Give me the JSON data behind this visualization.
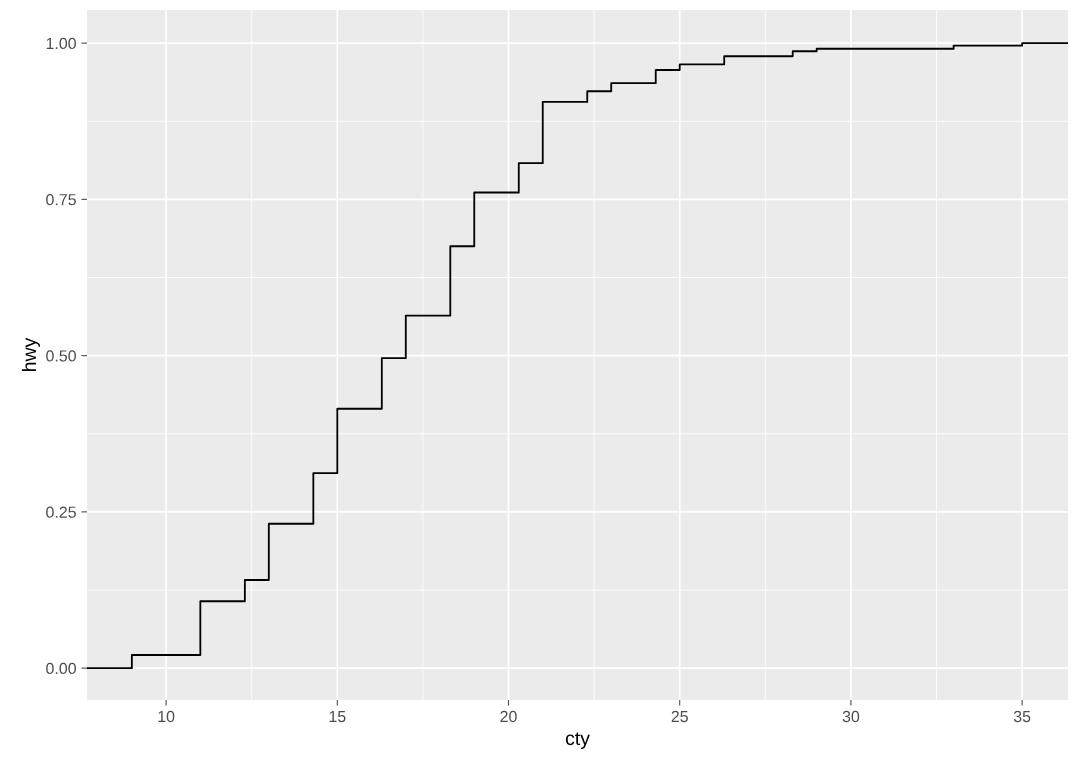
{
  "chart_data": {
    "type": "step",
    "xlabel": "cty",
    "ylabel": "hwy",
    "x": [
      7.69,
      9,
      11,
      12.3,
      13,
      14.3,
      15,
      16.3,
      17,
      18.3,
      19,
      20.3,
      21,
      22.3,
      23,
      24.3,
      25,
      26.3,
      28.3,
      29,
      33,
      35,
      36.34
    ],
    "series": [
      {
        "color": "#000000",
        "values": [
          0,
          0.021,
          0.107,
          0.141,
          0.231,
          0.312,
          0.415,
          0.496,
          0.564,
          0.675,
          0.761,
          0.808,
          0.906,
          0.923,
          0.936,
          0.957,
          0.966,
          0.979,
          0.987,
          0.991,
          0.996,
          1,
          1
        ]
      }
    ],
    "xlim": [
      7.69,
      36.34
    ],
    "ylim": [
      -0.051,
      1.053
    ],
    "xticks": [
      10,
      15,
      20,
      25,
      30,
      35
    ],
    "yticks": [
      {
        "value": 0,
        "label": "0.00"
      },
      {
        "value": 0.25,
        "label": "0.25"
      },
      {
        "value": 0.5,
        "label": "0.50"
      },
      {
        "value": 0.75,
        "label": "0.75"
      },
      {
        "value": 1,
        "label": "1.00"
      }
    ],
    "grid": true
  }
}
